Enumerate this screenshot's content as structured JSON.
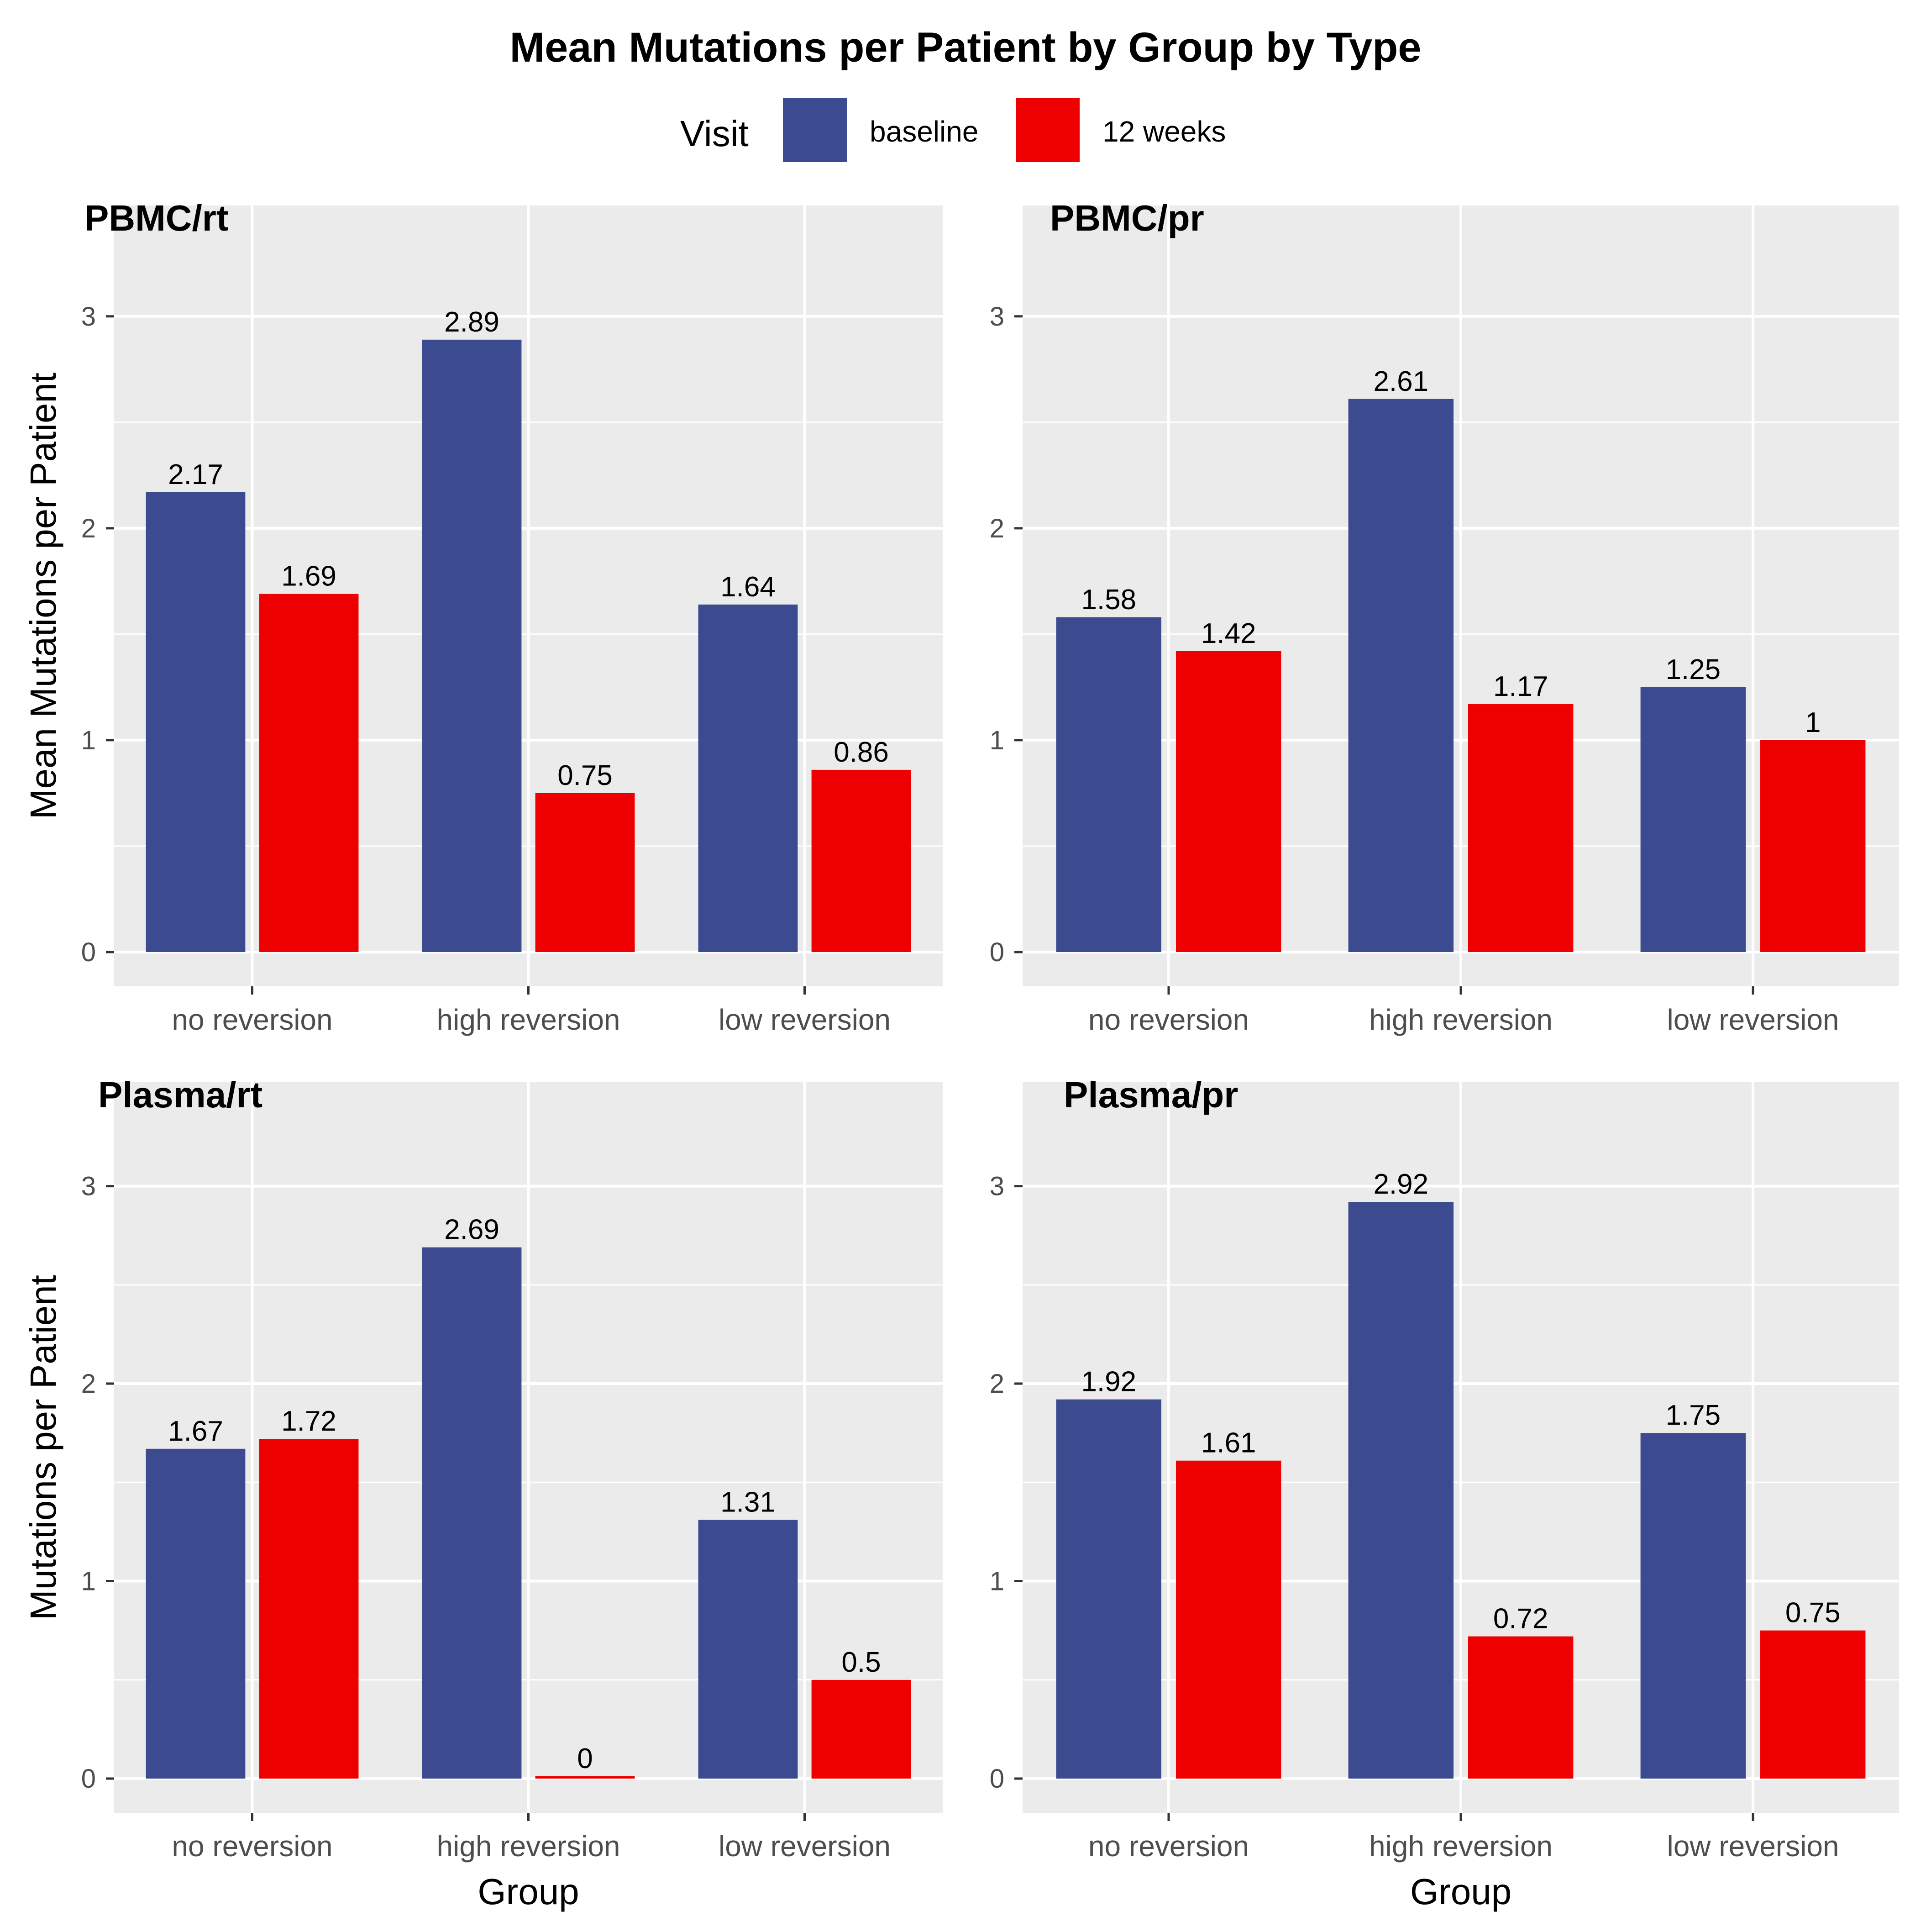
{
  "chart_data": {
    "type": "bar",
    "title": "Mean Mutations per Patient by Group by Type",
    "legend": {
      "title": "Visit",
      "position": "top",
      "items": [
        {
          "label": "baseline",
          "color": "#3c4a8f"
        },
        {
          "label": "12 weeks",
          "color": "#ee0000"
        }
      ]
    },
    "categories": [
      "no reversion",
      "high reversion",
      "low reversion"
    ],
    "xlabel": "Group",
    "ylim": [
      0,
      3.5
    ],
    "yticks": [
      0,
      1,
      2,
      3
    ],
    "grid": true,
    "panels": [
      {
        "title": "PBMC/rt",
        "ylabel": "Mean Mutations per Patient",
        "xlabel": "",
        "series": [
          {
            "name": "baseline",
            "values": [
              2.17,
              2.89,
              1.64
            ],
            "labels": [
              "2.17",
              "2.89",
              "1.64"
            ]
          },
          {
            "name": "12 weeks",
            "values": [
              1.69,
              0.75,
              0.86
            ],
            "labels": [
              "1.69",
              "0.75",
              "0.86"
            ]
          }
        ]
      },
      {
        "title": "PBMC/pr",
        "ylabel": "",
        "xlabel": "",
        "series": [
          {
            "name": "baseline",
            "values": [
              1.58,
              2.61,
              1.25
            ],
            "labels": [
              "1.58",
              "2.61",
              "1.25"
            ]
          },
          {
            "name": "12 weeks",
            "values": [
              1.42,
              1.17,
              1
            ],
            "labels": [
              "1.42",
              "1.17",
              "1"
            ]
          }
        ]
      },
      {
        "title": "Plasma/rt",
        "ylabel": "Mutations per Patient",
        "xlabel": "Group",
        "series": [
          {
            "name": "baseline",
            "values": [
              1.67,
              2.69,
              1.31
            ],
            "labels": [
              "1.67",
              "2.69",
              "1.31"
            ]
          },
          {
            "name": "12 weeks",
            "values": [
              1.72,
              0,
              0.5
            ],
            "labels": [
              "1.72",
              "0",
              "0.5"
            ]
          }
        ]
      },
      {
        "title": "Plasma/pr",
        "ylabel": "",
        "xlabel": "Group",
        "series": [
          {
            "name": "baseline",
            "values": [
              1.92,
              2.92,
              1.75
            ],
            "labels": [
              "1.92",
              "2.92",
              "1.75"
            ]
          },
          {
            "name": "12 weeks",
            "values": [
              1.61,
              0.72,
              0.75
            ],
            "labels": [
              "1.61",
              "0.72",
              "0.75"
            ]
          }
        ]
      }
    ]
  }
}
